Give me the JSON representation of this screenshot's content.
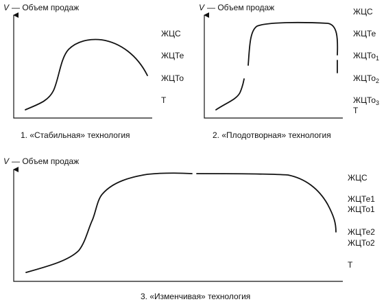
{
  "panels": [
    {
      "axis_variable": "V",
      "axis_label": "— Объем продаж",
      "labels": [
        {
          "text": "ЖЦС"
        },
        {
          "text": "ЖЦТе"
        },
        {
          "text": "ЖЦТо"
        },
        {
          "text": "Т"
        }
      ],
      "caption": "1. «Стабильная» технология"
    },
    {
      "axis_variable": "V",
      "axis_label": "— Объем продаж",
      "labels": [
        {
          "text": "ЖЦС"
        },
        {
          "text": "ЖЦТе"
        },
        {
          "text": "ЖЦТо",
          "sub": "1"
        },
        {
          "text": "ЖЦТо",
          "sub": "2"
        },
        {
          "text": "ЖЦТо",
          "sub": "3"
        },
        {
          "text": "Т"
        }
      ],
      "caption": "2. «Плодотворная» технология"
    },
    {
      "axis_variable": "V",
      "axis_label": "— Объем продаж",
      "labels": [
        {
          "text": "ЖЦС"
        },
        {
          "text": "ЖЦТе1"
        },
        {
          "text": "ЖЦТо1"
        },
        {
          "text": "ЖЦТе2"
        },
        {
          "text": "ЖЦТо2"
        },
        {
          "text": "Т"
        }
      ],
      "caption": "3. «Изменчивая» технология"
    }
  ]
}
